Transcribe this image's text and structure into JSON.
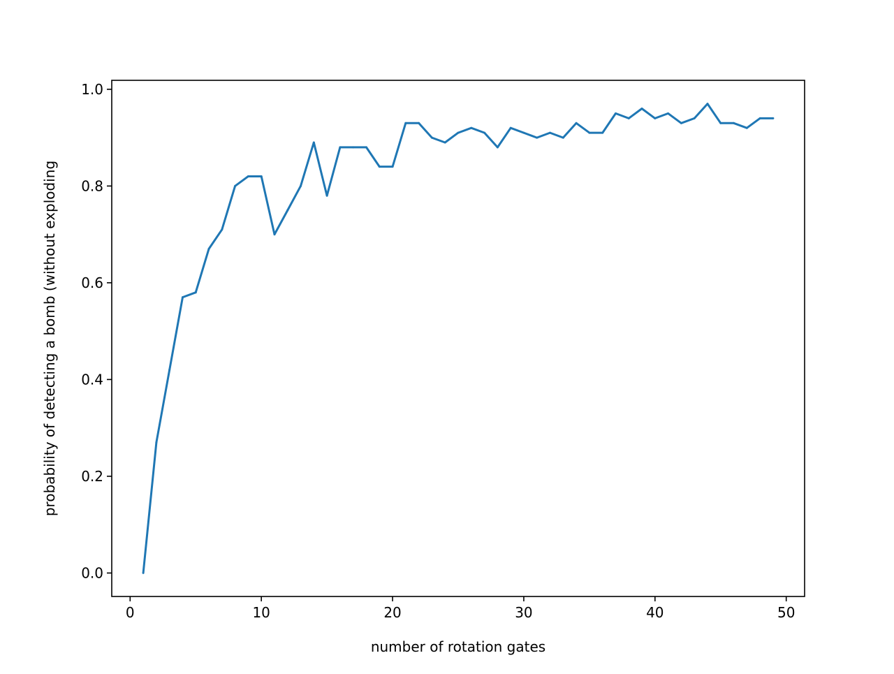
{
  "chart_data": {
    "type": "line",
    "title": "",
    "xlabel": "number of rotation gates",
    "ylabel": "probability of detecting a bomb (without exploding",
    "xlim": [
      -1.4,
      51.4
    ],
    "ylim": [
      -0.0485,
      1.0185
    ],
    "xticks": [
      0,
      10,
      20,
      30,
      40,
      50
    ],
    "xtick_labels": [
      "0",
      "10",
      "20",
      "30",
      "40",
      "50"
    ],
    "yticks": [
      0.0,
      0.2,
      0.4,
      0.6,
      0.8,
      1.0
    ],
    "ytick_labels": [
      "0.0",
      "0.2",
      "0.4",
      "0.6",
      "0.8",
      "1.0"
    ],
    "grid": false,
    "legend": "none",
    "series": [
      {
        "color": "#1f77b4",
        "x": [
          1,
          2,
          3,
          4,
          5,
          6,
          7,
          8,
          9,
          10,
          11,
          12,
          13,
          14,
          15,
          16,
          17,
          18,
          19,
          20,
          21,
          22,
          23,
          24,
          25,
          26,
          27,
          28,
          29,
          30,
          31,
          32,
          33,
          34,
          35,
          36,
          37,
          38,
          39,
          40,
          41,
          42,
          43,
          44,
          45,
          46,
          47,
          48,
          49
        ],
        "y": [
          0.0,
          0.27,
          0.42,
          0.57,
          0.58,
          0.67,
          0.71,
          0.8,
          0.82,
          0.82,
          0.7,
          0.75,
          0.8,
          0.89,
          0.78,
          0.88,
          0.88,
          0.88,
          0.84,
          0.84,
          0.93,
          0.93,
          0.9,
          0.89,
          0.91,
          0.92,
          0.91,
          0.88,
          0.92,
          0.91,
          0.9,
          0.91,
          0.9,
          0.93,
          0.91,
          0.91,
          0.95,
          0.94,
          0.96,
          0.94,
          0.95,
          0.93,
          0.94,
          0.97,
          0.93,
          0.93,
          0.92,
          0.94,
          0.94
        ]
      }
    ]
  }
}
